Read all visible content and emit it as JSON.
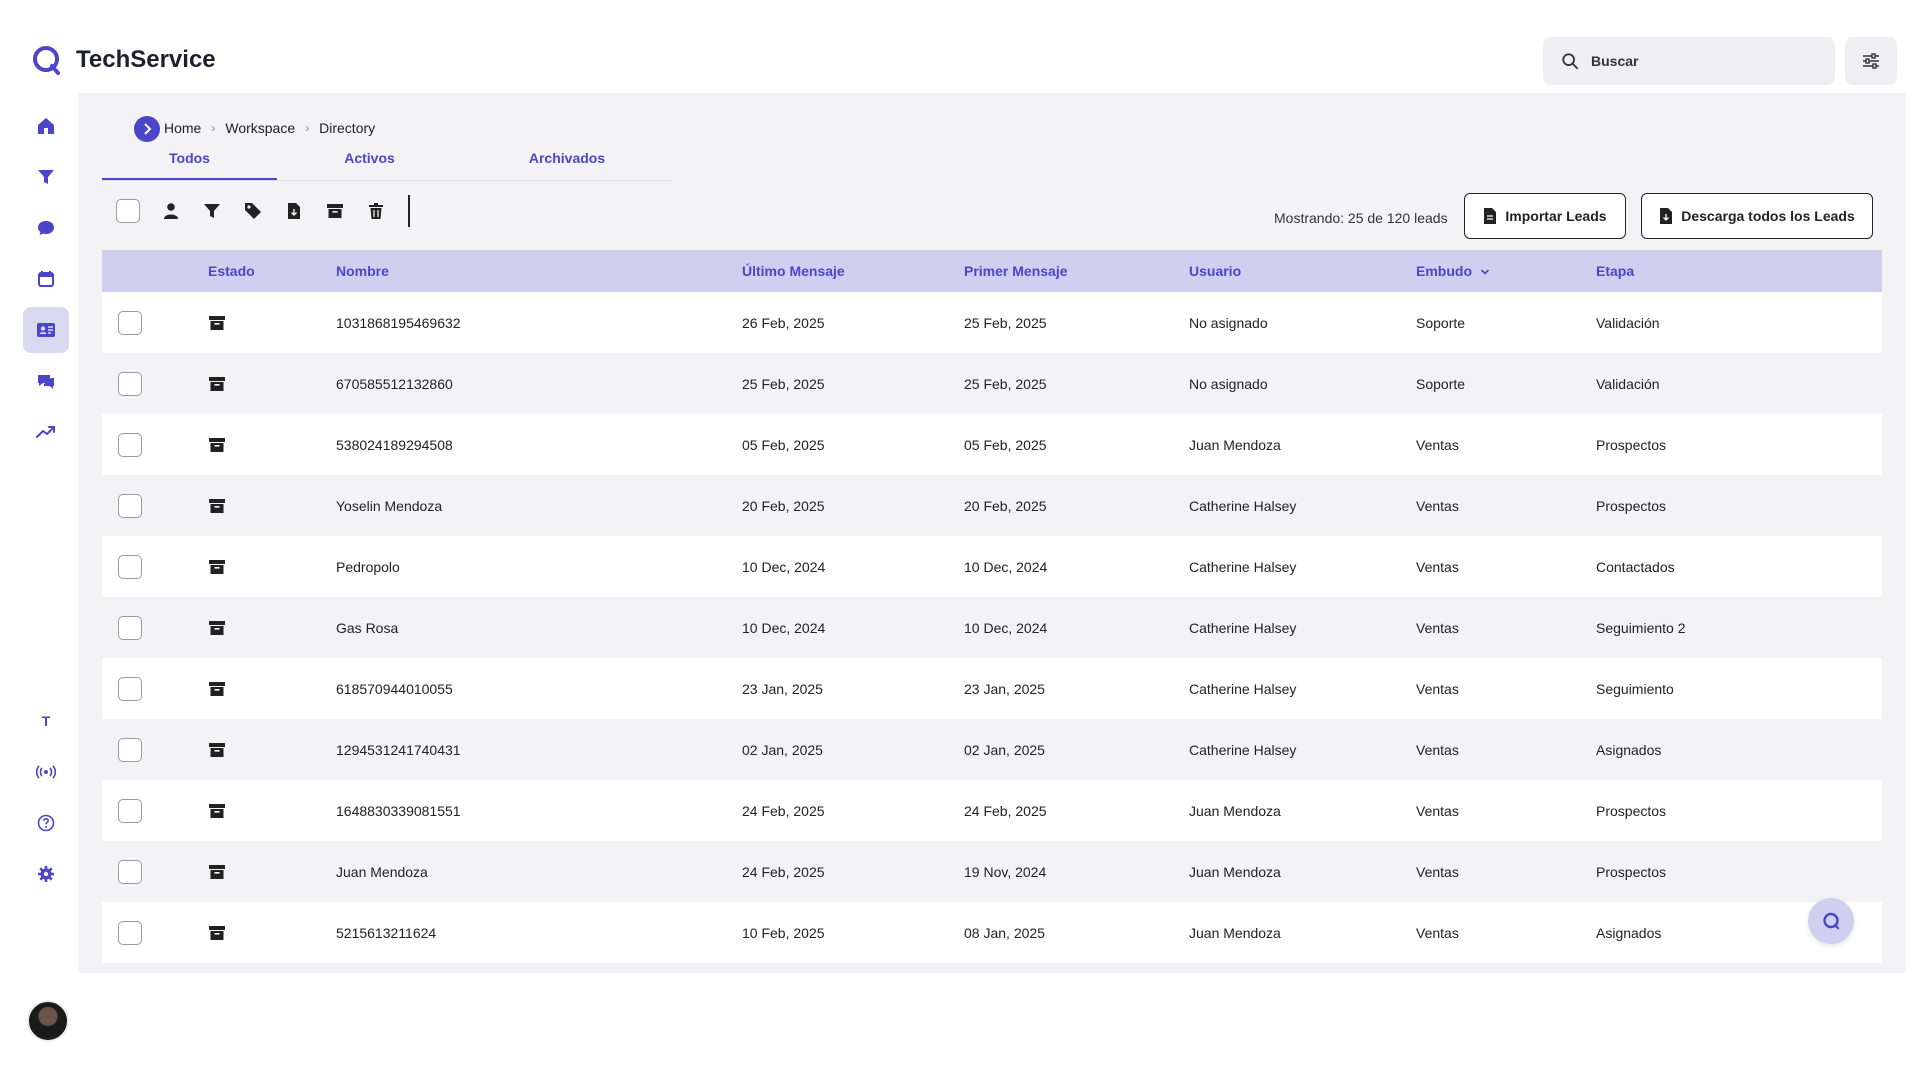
{
  "app": {
    "name": "TechService"
  },
  "colors": {
    "accent": "#4b46c9",
    "header_bg": "#cfd0f0",
    "panel_bg": "#f3f3f5"
  },
  "search": {
    "placeholder": "Buscar"
  },
  "sidebar": {
    "top_items": [
      {
        "icon": "home-icon"
      },
      {
        "icon": "funnel-icon"
      },
      {
        "icon": "chat-bubble-icon"
      },
      {
        "icon": "calendar-icon"
      },
      {
        "icon": "contact-card-icon",
        "active": true
      },
      {
        "icon": "messages-icon"
      },
      {
        "icon": "trending-up-icon"
      }
    ],
    "bottom_items": [
      {
        "icon": "text-t-icon",
        "label": "T"
      },
      {
        "icon": "broadcast-icon"
      },
      {
        "icon": "help-icon"
      },
      {
        "icon": "settings-icon"
      }
    ]
  },
  "breadcrumb": [
    "Home",
    "Workspace",
    "Directory"
  ],
  "tabs": [
    {
      "label": "Todos",
      "active": true
    },
    {
      "label": "Activos"
    },
    {
      "label": "Archivados"
    }
  ],
  "toolbar": {
    "icons": [
      "assign-user-icon",
      "filter-icon",
      "tag-icon",
      "export-file-icon",
      "archive-icon",
      "trash-icon"
    ],
    "count_text": "Mostrando: 25 de 120 leads",
    "import_label": "Importar Leads",
    "download_label": "Descarga todos los Leads"
  },
  "table": {
    "columns": {
      "estado": "Estado",
      "nombre": "Nombre",
      "ultimo": "Último Mensaje",
      "primer": "Primer Mensaje",
      "usuario": "Usuario",
      "embudo": "Embudo",
      "etapa": "Etapa"
    },
    "rows": [
      {
        "nombre": "1031868195469632",
        "ultimo": "26 Feb, 2025",
        "primer": "25 Feb, 2025",
        "usuario": "No asignado",
        "embudo": "Soporte",
        "etapa": "Validación"
      },
      {
        "nombre": "670585512132860",
        "ultimo": "25 Feb, 2025",
        "primer": "25 Feb, 2025",
        "usuario": "No asignado",
        "embudo": "Soporte",
        "etapa": "Validación"
      },
      {
        "nombre": "538024189294508",
        "ultimo": "05 Feb, 2025",
        "primer": "05 Feb, 2025",
        "usuario": "Juan Mendoza",
        "embudo": "Ventas",
        "etapa": "Prospectos"
      },
      {
        "nombre": "Yoselin Mendoza",
        "ultimo": "20 Feb, 2025",
        "primer": "20 Feb, 2025",
        "usuario": "Catherine Halsey",
        "embudo": "Ventas",
        "etapa": "Prospectos"
      },
      {
        "nombre": "Pedropolo",
        "ultimo": "10 Dec, 2024",
        "primer": "10 Dec, 2024",
        "usuario": "Catherine Halsey",
        "embudo": "Ventas",
        "etapa": "Contactados"
      },
      {
        "nombre": "Gas Rosa",
        "ultimo": "10 Dec, 2024",
        "primer": "10 Dec, 2024",
        "usuario": "Catherine Halsey",
        "embudo": "Ventas",
        "etapa": "Seguimiento 2"
      },
      {
        "nombre": "618570944010055",
        "ultimo": "23 Jan, 2025",
        "primer": "23 Jan, 2025",
        "usuario": "Catherine Halsey",
        "embudo": "Ventas",
        "etapa": "Seguimiento"
      },
      {
        "nombre": "1294531241740431",
        "ultimo": "02 Jan, 2025",
        "primer": "02 Jan, 2025",
        "usuario": "Catherine Halsey",
        "embudo": "Ventas",
        "etapa": "Asignados"
      },
      {
        "nombre": "1648830339081551",
        "ultimo": "24 Feb, 2025",
        "primer": "24 Feb, 2025",
        "usuario": "Juan Mendoza",
        "embudo": "Ventas",
        "etapa": "Prospectos"
      },
      {
        "nombre": "Juan Mendoza",
        "ultimo": "24 Feb, 2025",
        "primer": "19 Nov, 2024",
        "usuario": "Juan Mendoza",
        "embudo": "Ventas",
        "etapa": "Prospectos"
      },
      {
        "nombre": "5215613211624",
        "ultimo": "10 Feb, 2025",
        "primer": "08 Jan, 2025",
        "usuario": "Juan Mendoza",
        "embudo": "Ventas",
        "etapa": "Asignados"
      }
    ]
  }
}
